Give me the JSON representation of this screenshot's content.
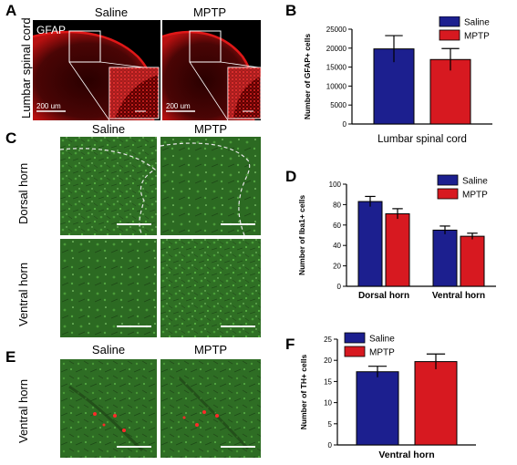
{
  "panels": {
    "A": {
      "label": "A",
      "row_label": "Lumbar spinal cord",
      "stain_label": "GFAP",
      "col_titles": [
        "Saline",
        "MPTP"
      ],
      "scale_bar_label": "200 um"
    },
    "C": {
      "label": "C",
      "col_titles": [
        "Saline",
        "MPTP"
      ],
      "row_labels": [
        "Dorsal horn",
        "Ventral horn"
      ]
    },
    "E": {
      "label": "E",
      "col_titles": [
        "Saline",
        "MPTP"
      ],
      "row_label": "Ventral horn"
    }
  },
  "colors": {
    "saline": "#1c1f8f",
    "mptp": "#d71920",
    "gfap_red": "#ff2020",
    "tissue_green": "#3b8a2c"
  },
  "chart_data": [
    {
      "id": "B",
      "panel_label": "B",
      "type": "bar",
      "categories": [
        "Lumbar spinal cord"
      ],
      "series": [
        {
          "name": "Saline",
          "values": [
            19800
          ],
          "errors": [
            3500
          ]
        },
        {
          "name": "MPTP",
          "values": [
            17000
          ],
          "errors": [
            2900
          ]
        }
      ],
      "xlabel": "Lumbar spinal cord",
      "ylabel": "Number of GFAP+ cells",
      "ylim": [
        0,
        25000
      ],
      "yticks": [
        0,
        5000,
        10000,
        15000,
        20000,
        25000
      ],
      "show_category_labels": false,
      "legend": "top-right"
    },
    {
      "id": "D",
      "panel_label": "D",
      "type": "bar",
      "categories": [
        "Dorsal horn",
        "Ventral horn"
      ],
      "series": [
        {
          "name": "Saline",
          "values": [
            83,
            55
          ],
          "errors": [
            5,
            4
          ]
        },
        {
          "name": "MPTP",
          "values": [
            71,
            49
          ],
          "errors": [
            5,
            3
          ]
        }
      ],
      "xlabel": "",
      "ylabel": "Number of Iba1+ cells",
      "ylim": [
        0,
        100
      ],
      "yticks": [
        0,
        20,
        40,
        60,
        80,
        100
      ],
      "show_category_labels": true,
      "legend": "top-right"
    },
    {
      "id": "F",
      "panel_label": "F",
      "type": "bar",
      "categories": [
        "Ventral horn"
      ],
      "series": [
        {
          "name": "Saline",
          "values": [
            17.3
          ],
          "errors": [
            1.3
          ]
        },
        {
          "name": "MPTP",
          "values": [
            19.7
          ],
          "errors": [
            1.8
          ]
        }
      ],
      "xlabel": "Ventral horn",
      "ylabel": "Number of TH+ cells",
      "ylim": [
        0,
        25
      ],
      "yticks": [
        0,
        5,
        10,
        15,
        20,
        25
      ],
      "show_category_labels": false,
      "legend": "top-left"
    }
  ]
}
